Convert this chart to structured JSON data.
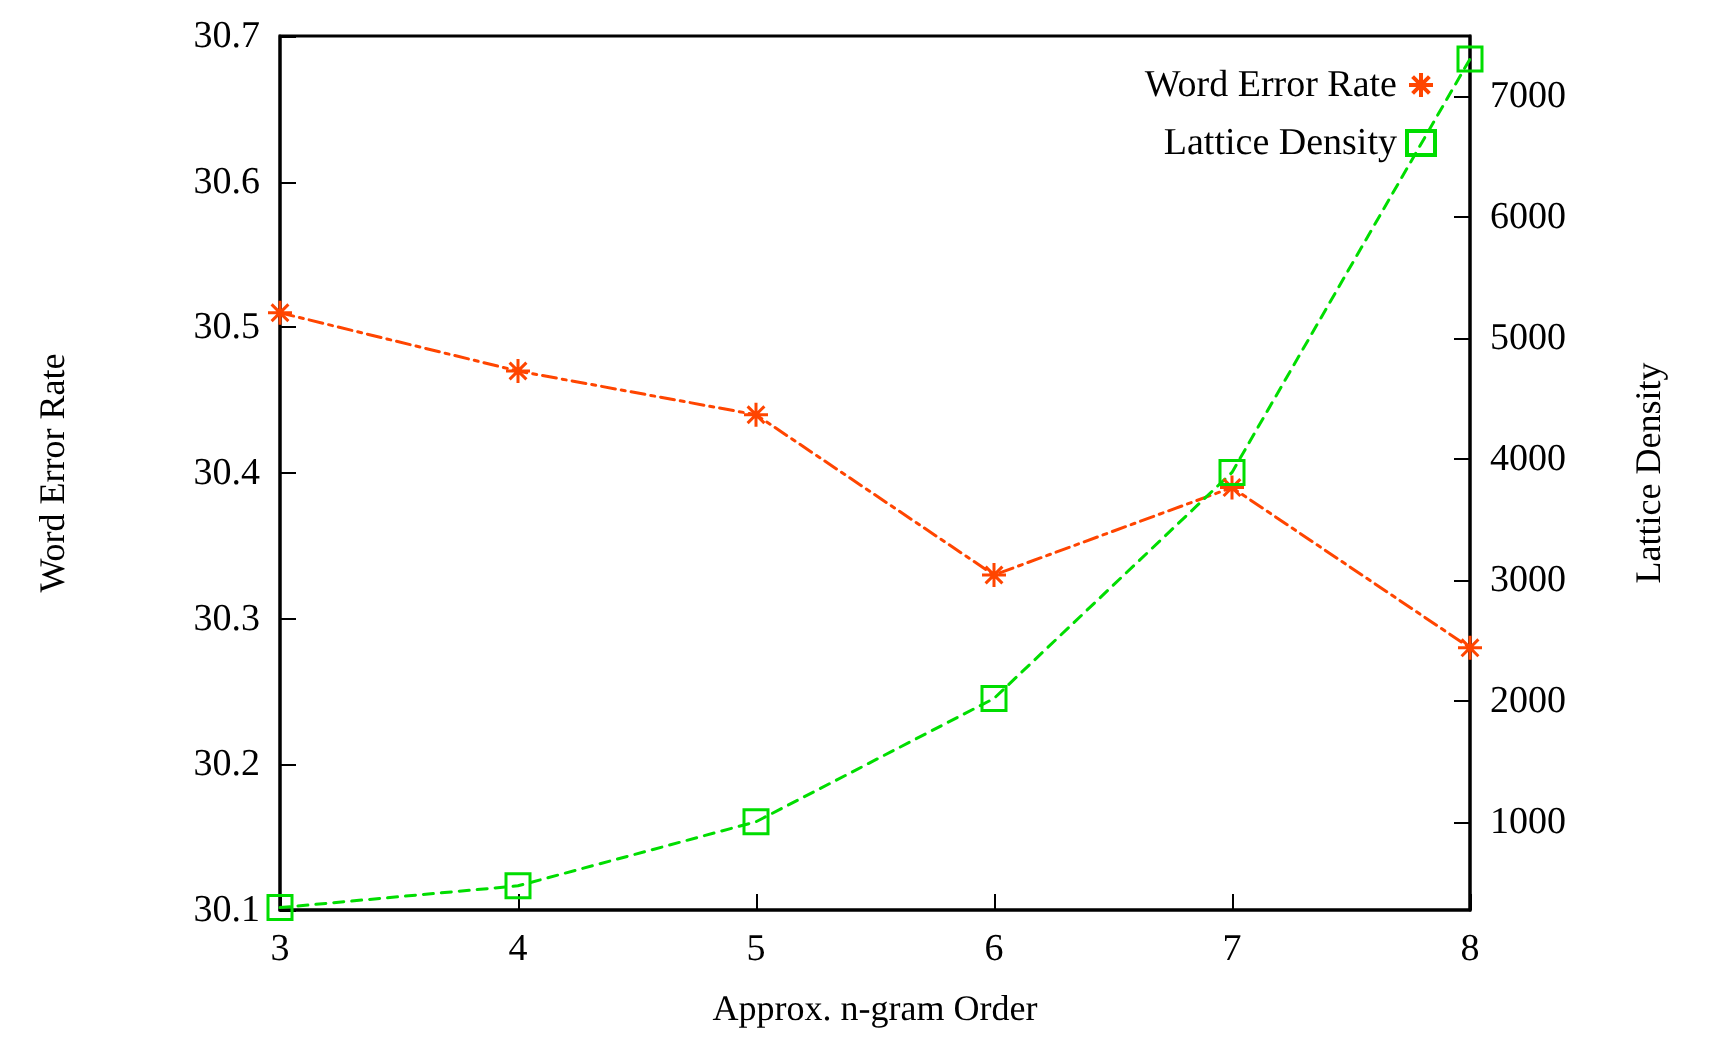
{
  "chart_data": {
    "type": "line",
    "xlabel": "Approx. n-gram Order",
    "ylabel": "Word Error Rate",
    "y2label": "Lattice Density",
    "x": [
      3,
      4,
      5,
      6,
      7,
      8
    ],
    "xlim": [
      3,
      8
    ],
    "xticks": [
      3,
      4,
      5,
      6,
      7,
      8
    ],
    "ylim": [
      30.1,
      30.7
    ],
    "yticks": [
      30.1,
      30.2,
      30.3,
      30.4,
      30.5,
      30.6,
      30.7
    ],
    "y2lim": [
      270,
      7500
    ],
    "y2ticks": [
      1000,
      2000,
      3000,
      4000,
      5000,
      6000,
      7000
    ],
    "series": [
      {
        "name": "Word Error Rate",
        "color": "#ff4500",
        "values": [
          30.51,
          30.47,
          30.44,
          30.33,
          30.39,
          30.28
        ],
        "marker": "cross",
        "line_style": "dashdot"
      },
      {
        "name": "Lattice Density",
        "color": "#00dd00",
        "axis": "y2",
        "values": [
          290,
          470,
          1000,
          2020,
          3890,
          7310
        ],
        "marker": "square",
        "line_style": "dashed"
      }
    ],
    "grid": false,
    "legend": "top right"
  }
}
